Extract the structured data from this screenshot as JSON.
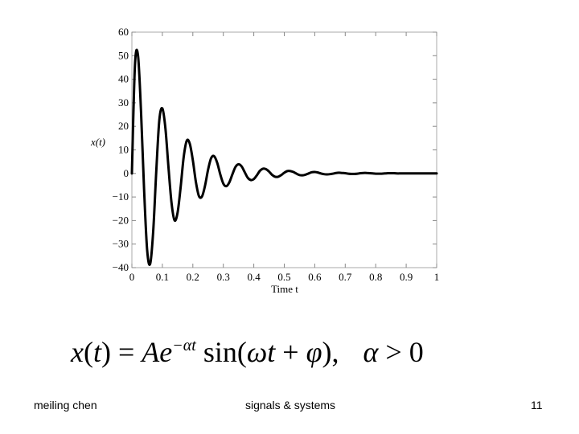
{
  "chart_data": {
    "type": "line",
    "xlabel": "Time t",
    "ylabel": "x(t)",
    "xlim": [
      0,
      1
    ],
    "ylim": [
      -40,
      60
    ],
    "x_ticks": [
      "0",
      "0.1",
      "0.2",
      "0.3",
      "0.4",
      "0.5",
      "0.6",
      "0.7",
      "0.8",
      "0.9",
      "1"
    ],
    "y_ticks": [
      "60",
      "50",
      "40",
      "30",
      "20",
      "10",
      "0",
      "−10",
      "−20",
      "−30",
      "−40"
    ],
    "grid": false,
    "series": [
      {
        "x": [
          0.0,
          0.01,
          0.02,
          0.03,
          0.04,
          0.05,
          0.06,
          0.07,
          0.08,
          0.09,
          0.1,
          0.11,
          0.12,
          0.13,
          0.14,
          0.15,
          0.16,
          0.17,
          0.18,
          0.19,
          0.2,
          0.21,
          0.22,
          0.23,
          0.24,
          0.25,
          0.26,
          0.27,
          0.28,
          0.29,
          0.3,
          0.31,
          0.32,
          0.33,
          0.34,
          0.35,
          0.36,
          0.37,
          0.38,
          0.39,
          0.4,
          0.41,
          0.42,
          0.43,
          0.44,
          0.45,
          0.46,
          0.47,
          0.48,
          0.49,
          0.5,
          0.51,
          0.52,
          0.53,
          0.54,
          0.55,
          0.56,
          0.57,
          0.58,
          0.59,
          0.6,
          0.61,
          0.62,
          0.63,
          0.64,
          0.65,
          0.66,
          0.67,
          0.68,
          0.69,
          0.7,
          0.71,
          0.72,
          0.73,
          0.74,
          0.75,
          0.76,
          0.77,
          0.78,
          0.79,
          0.8,
          0.81,
          0.82,
          0.83,
          0.84,
          0.85,
          0.86,
          0.87,
          0.88,
          0.89,
          0.9,
          0.91,
          0.92,
          0.93,
          0.94,
          0.95,
          0.96,
          0.97,
          0.98,
          0.99,
          1.0
        ],
        "y": [
          0.0,
          45.8,
          50.2,
          26.3,
          -6.7,
          -32.4,
          -38.4,
          -24.5,
          0.9,
          22.6,
          27.6,
          19.2,
          2.7,
          -12.4,
          -19.9,
          -16.6,
          -5.8,
          7.0,
          13.9,
          12.6,
          5.6,
          -3.6,
          -9.6,
          -9.8,
          -5.2,
          1.6,
          6.5,
          7.3,
          4.5,
          -0.4,
          -4.3,
          -5.4,
          -3.7,
          -0.3,
          2.8,
          3.9,
          3.0,
          0.6,
          -1.8,
          -2.8,
          -2.4,
          -0.8,
          1.1,
          2.0,
          1.8,
          0.8,
          -0.6,
          -1.4,
          -1.4,
          -0.7,
          0.3,
          1.0,
          1.0,
          0.6,
          -0.1,
          -0.7,
          -0.8,
          -0.5,
          0.0,
          0.5,
          0.6,
          0.4,
          0.0,
          -0.3,
          -0.4,
          -0.3,
          -0.1,
          0.2,
          0.3,
          0.2,
          0.1,
          -0.1,
          -0.2,
          -0.2,
          -0.1,
          0.1,
          0.2,
          0.2,
          0.1,
          0.0,
          -0.1,
          -0.1,
          -0.1,
          0.0,
          0.1,
          0.1,
          0.1,
          0.0,
          0.0,
          0.0,
          0.0,
          0.0,
          0.0,
          0.0,
          0.0,
          0.0,
          0.0,
          0.0,
          0.0,
          0.0,
          0.0
        ]
      }
    ]
  },
  "formula": {
    "x": "x",
    "t": "t",
    "eq_a": ") = ",
    "A": "A",
    "e": "e",
    "exp": "−αt",
    "sin": " sin(",
    "omega": "ω",
    "t2": "t",
    "plus": " + ",
    "phi": "φ",
    "close": "),",
    "alpha": "α",
    "gt": " > 0"
  },
  "footer": {
    "author": "meiling chen",
    "course": "signals & systems",
    "page": "11"
  }
}
